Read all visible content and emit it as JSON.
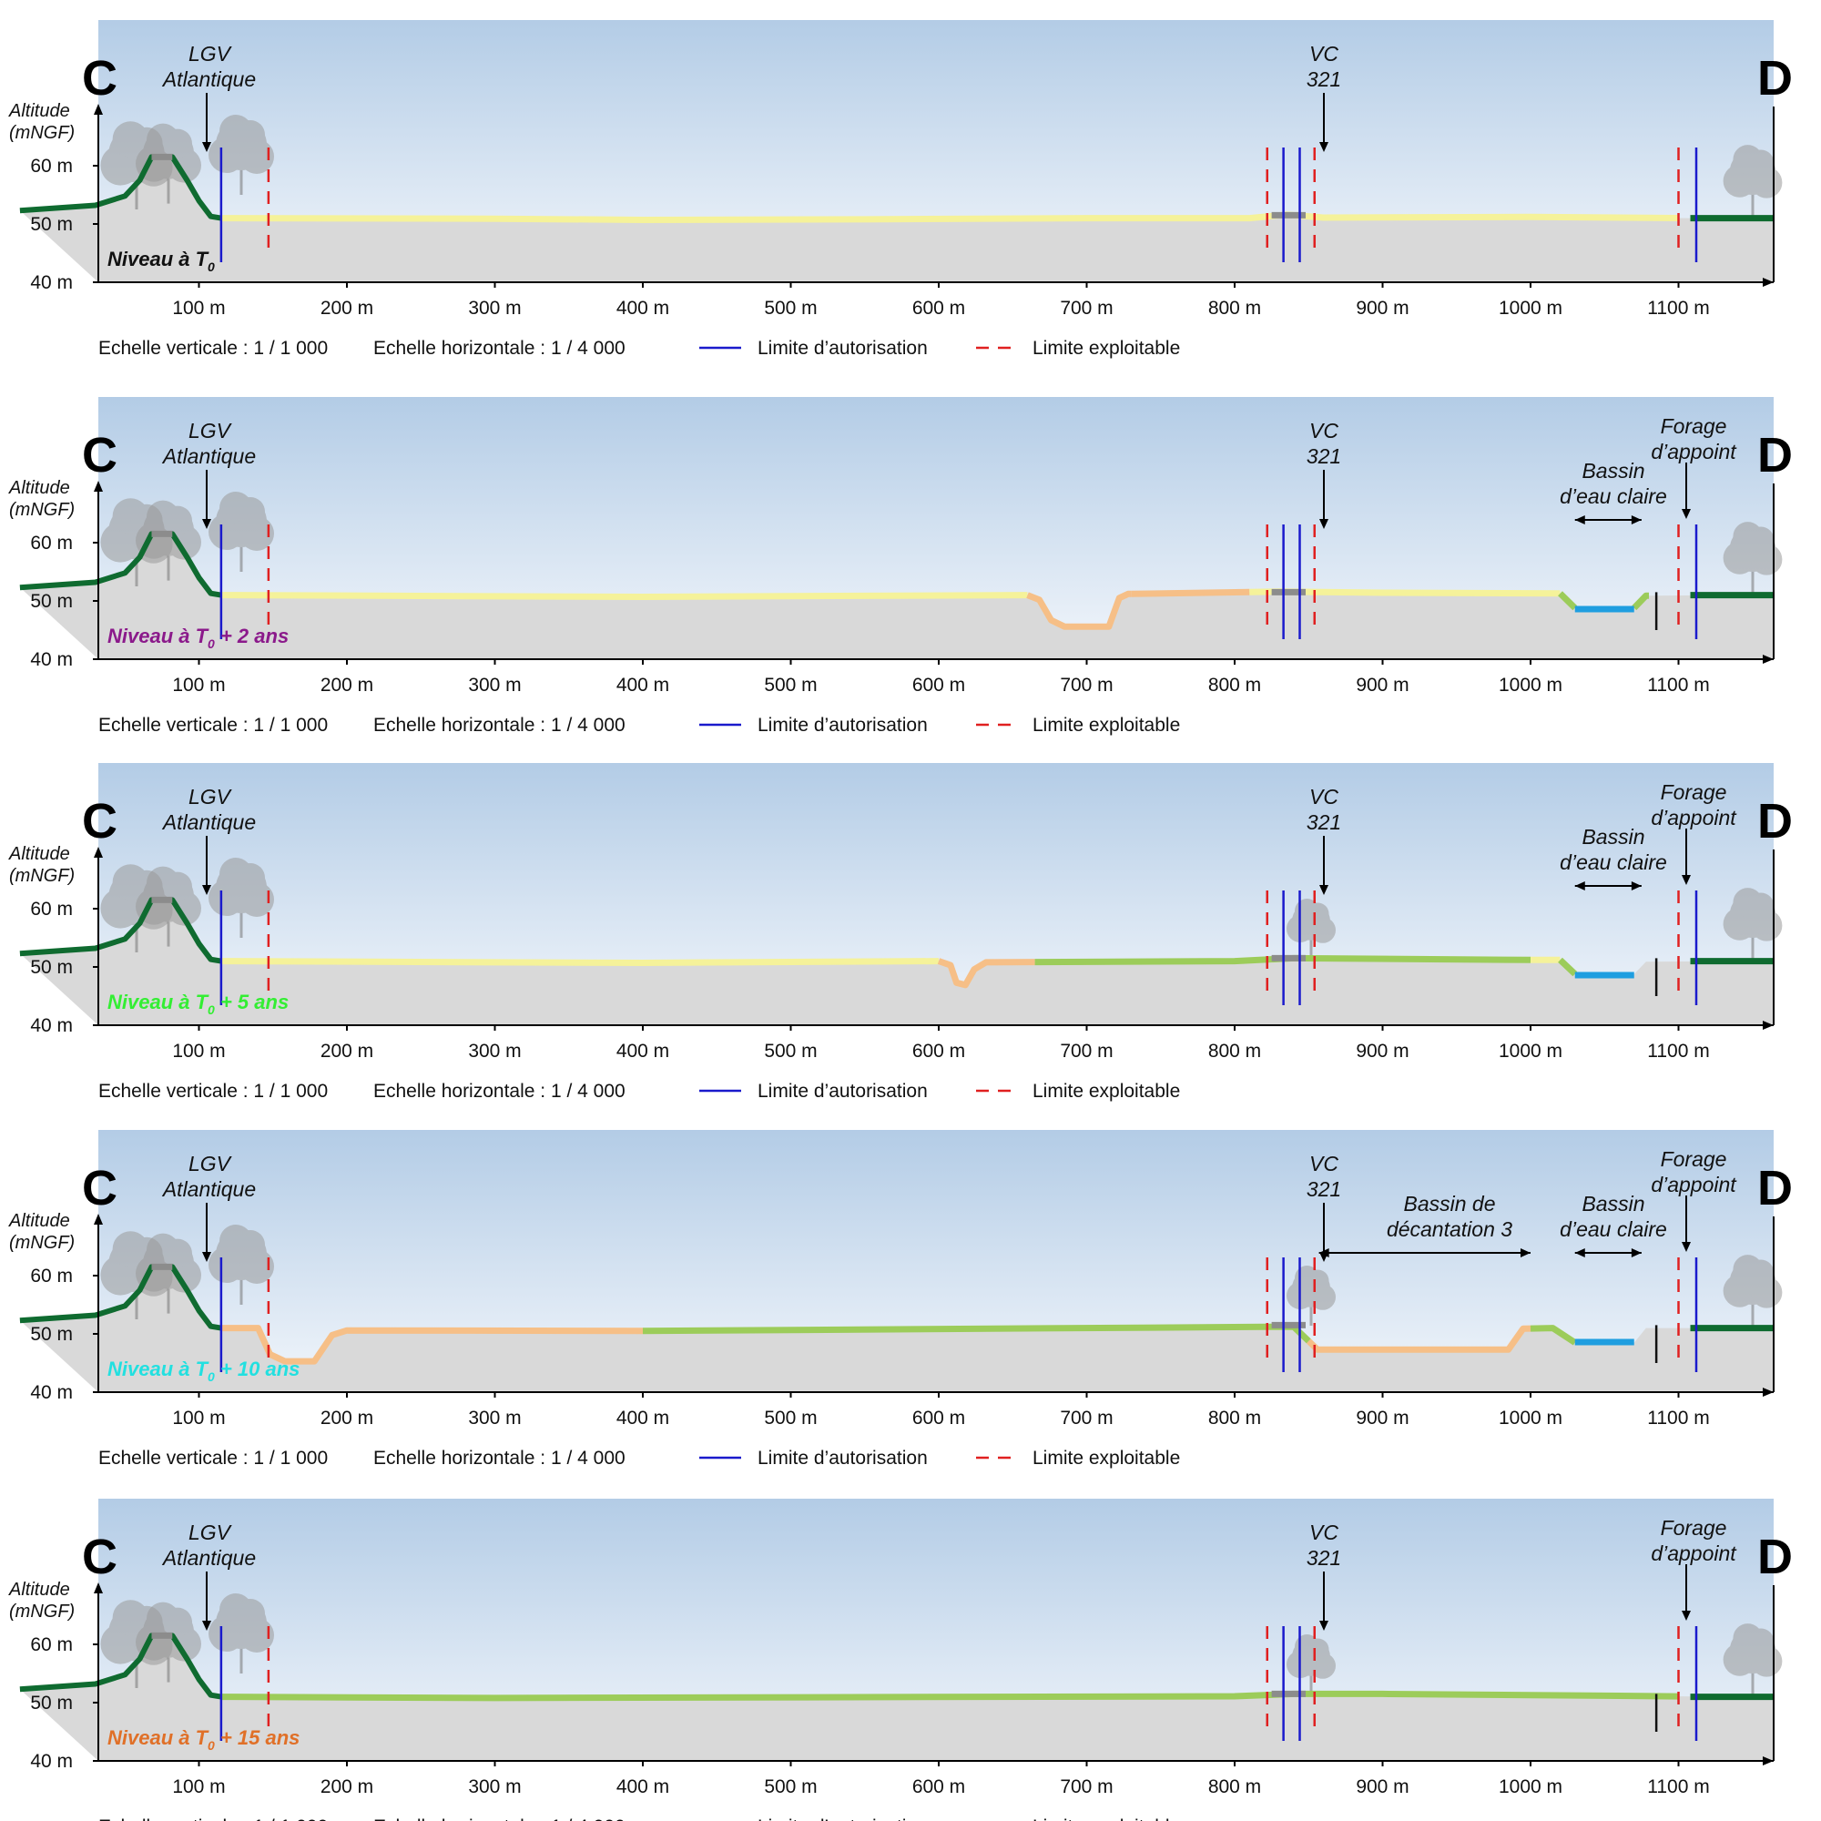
{
  "figure": {
    "altitude_title": [
      "Altitude",
      "(mNGF)"
    ],
    "start_letter": "C",
    "end_letter": "D",
    "y_ticks": [
      "60 m",
      "50 m",
      "40 m"
    ],
    "x_ticks": [
      "100 m",
      "200 m",
      "300 m",
      "400 m",
      "500 m",
      "600 m",
      "700 m",
      "800 m",
      "900 m",
      "1000 m",
      "1100 m"
    ],
    "scales": {
      "vertical": "Echelle verticale : 1 / 1 000",
      "horizontal": "Echelle horizontale : 1 / 4 000",
      "authorization_limit": "Limite d’autorisation",
      "exploitable_limit": "Limite exploitable"
    },
    "annotations": {
      "lgv": [
        "LGV",
        "Atlantique"
      ],
      "vc": [
        "VC",
        "321"
      ],
      "forage": [
        "Forage",
        "d’appoint"
      ],
      "bassin_eau_claire": [
        "Bassin",
        "d’eau claire"
      ],
      "bassin_decantation": [
        "Bassin de",
        "décantation 3"
      ]
    },
    "colors": {
      "sky_top": "#b3cce6",
      "sky_bottom": "#f2f6fb",
      "ground": "#d9d9d9",
      "topsoil_dark": "#0f6b30",
      "road": "#8c8c8c",
      "fill_yellow": "#f5f29a",
      "fill_orange": "#f6bf87",
      "fill_green": "#9ccc5a",
      "water": "#1f9ee0",
      "authorization_limit": "#1a1acc",
      "exploitable_limit": "#e02020"
    }
  },
  "panels": [
    {
      "level_text": "Niveau à T",
      "level_sub": "0",
      "level_suffix": "",
      "level_color": "#111111",
      "show_forage": false,
      "show_bassin_eau_claire": false,
      "show_bassin_decantation": false
    },
    {
      "level_text": "Niveau à T",
      "level_sub": "0",
      "level_suffix": " + 2 ans",
      "level_color": "#8b1a8b",
      "show_forage": true,
      "show_bassin_eau_claire": true,
      "show_bassin_decantation": false
    },
    {
      "level_text": "Niveau à T",
      "level_sub": "0",
      "level_suffix": " + 5 ans",
      "level_color": "#33ee33",
      "show_forage": true,
      "show_bassin_eau_claire": true,
      "show_bassin_decantation": false
    },
    {
      "level_text": "Niveau à T",
      "level_sub": "0",
      "level_suffix": " + 10 ans",
      "level_color": "#22e0e0",
      "show_forage": true,
      "show_bassin_eau_claire": true,
      "show_bassin_decantation": true
    },
    {
      "level_text": "Niveau à T",
      "level_sub": "0",
      "level_suffix": " + 15 ans",
      "level_color": "#e07028",
      "show_forage": true,
      "show_bassin_eau_claire": false,
      "show_bassin_decantation": false
    }
  ]
}
